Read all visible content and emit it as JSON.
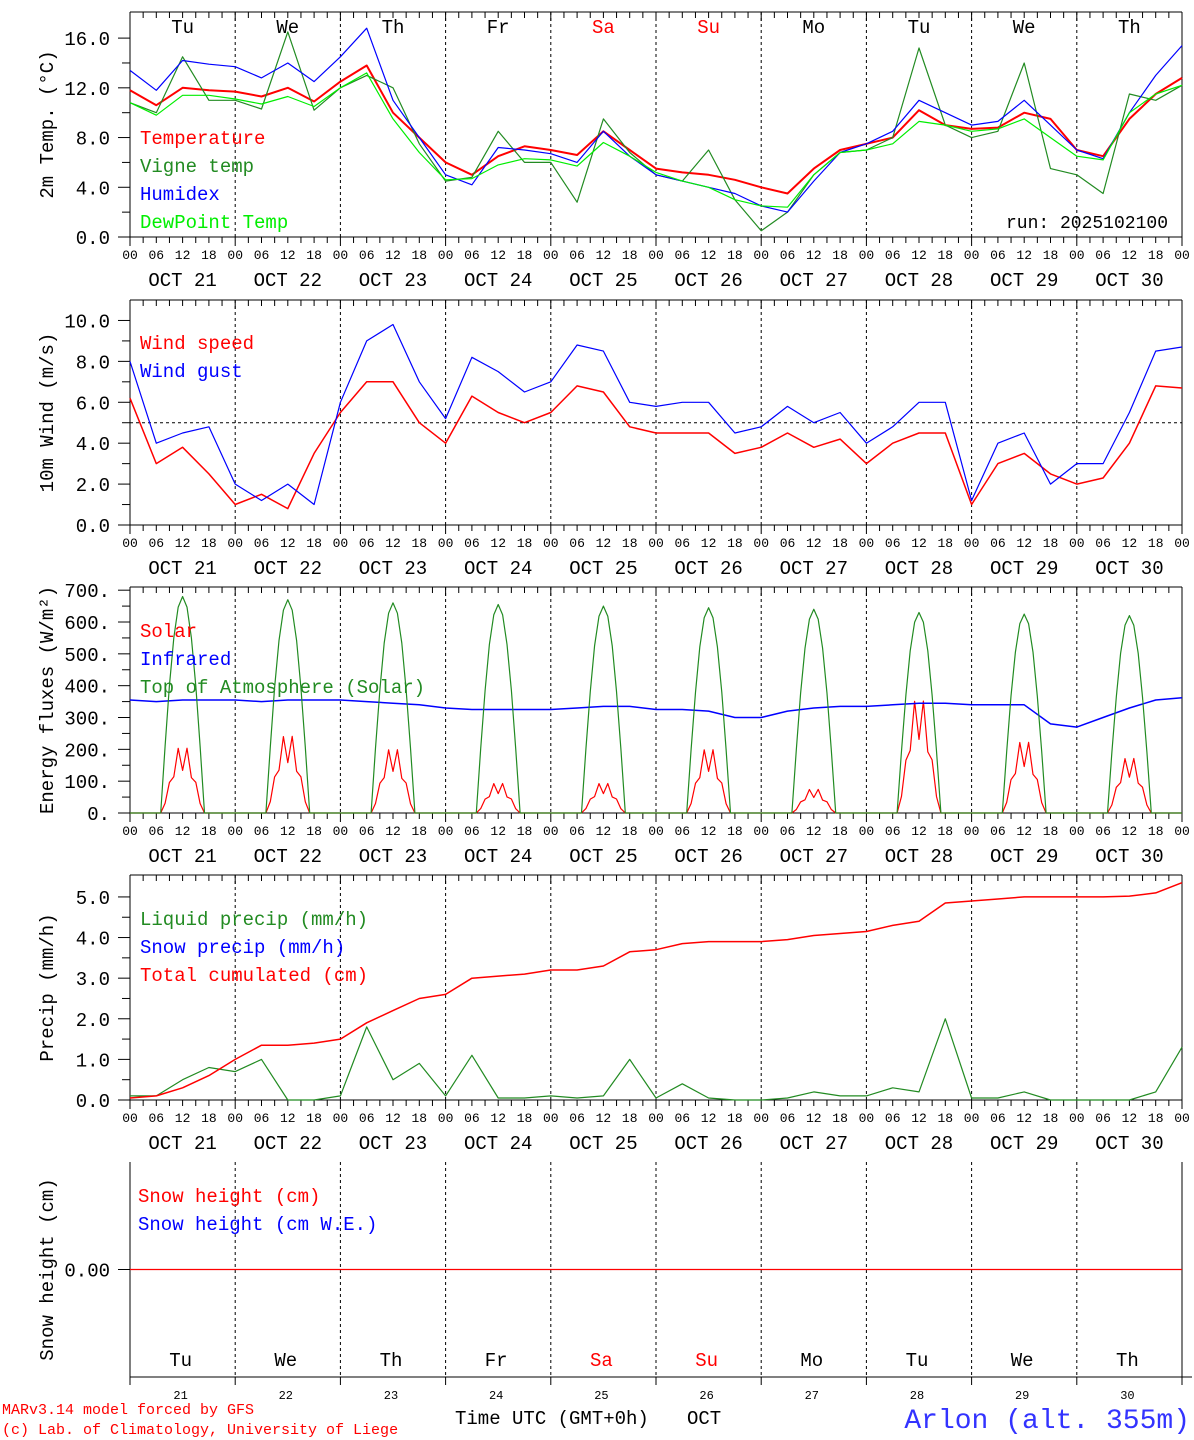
{
  "colors": {
    "red": "#ff0000",
    "green": "#228b22",
    "blue": "#0000ff",
    "lime": "#00ee00",
    "black": "#000000"
  },
  "days": [
    "Tu",
    "We",
    "Th",
    "Fr",
    "Sa",
    "Su",
    "Mo",
    "Tu",
    "We",
    "Th"
  ],
  "weekend": [
    false,
    false,
    false,
    false,
    true,
    true,
    false,
    false,
    false,
    false
  ],
  "dates": [
    "OCT 21",
    "OCT 22",
    "OCT 23",
    "OCT 24",
    "OCT 25",
    "OCT 26",
    "OCT 27",
    "OCT 28",
    "OCT 29",
    "OCT 30"
  ],
  "day_numbers": [
    "21",
    "22",
    "23",
    "24",
    "25",
    "26",
    "27",
    "28",
    "29",
    "30"
  ],
  "hour_labels": [
    "00",
    "06",
    "12",
    "18"
  ],
  "run_label": "run: 2025102100",
  "footer": {
    "model": "MARv3.14 model forced by GFS",
    "credit": "(c) Lab. of Climatology, University of Liege",
    "xlabel": "Time UTC (GMT+0h)",
    "month": "OCT",
    "station": "Arlon (alt. 355m)"
  },
  "chart_data": [
    {
      "type": "line",
      "ylabel": "2m Temp. (°C)",
      "ylim": [
        0,
        18.1
      ],
      "yticks": [
        "0.0",
        "4.0",
        "8.0",
        "12.0",
        "16.0"
      ],
      "ytick_values": [
        0,
        4,
        8,
        12,
        16
      ],
      "x_step_hours": 6,
      "series": [
        {
          "name": "Temperature",
          "color": "#ff0000",
          "width": 2,
          "values": [
            11.8,
            10.6,
            12.0,
            11.8,
            11.7,
            11.3,
            12.0,
            10.9,
            12.5,
            13.8,
            10.0,
            8.0,
            6.0,
            5.0,
            6.5,
            7.3,
            7.0,
            6.6,
            8.5,
            7.0,
            5.5,
            5.2,
            5.0,
            4.6,
            4.0,
            3.5,
            5.5,
            7.0,
            7.5,
            8.0,
            10.2,
            9.0,
            8.7,
            8.8,
            10.0,
            9.5,
            7.0,
            6.5,
            9.5,
            11.5,
            12.8
          ]
        },
        {
          "name": "Vigne temp",
          "color": "#228b22",
          "width": 1.2,
          "values": [
            10.8,
            10.0,
            14.5,
            11.0,
            11.0,
            10.3,
            16.5,
            10.2,
            12.0,
            13.0,
            12.0,
            7.5,
            4.5,
            4.8,
            8.5,
            6.0,
            6.0,
            2.8,
            9.5,
            6.8,
            5.0,
            4.5,
            7.0,
            3.0,
            0.5,
            2.0,
            5.0,
            6.8,
            7.0,
            8.0,
            15.2,
            9.0,
            8.0,
            8.5,
            14.0,
            5.5,
            5.0,
            3.5,
            11.5,
            11.0,
            12.2
          ]
        },
        {
          "name": "Humidex",
          "color": "#0000ff",
          "width": 1.2,
          "values": [
            13.4,
            11.8,
            14.2,
            13.9,
            13.7,
            12.8,
            14.0,
            12.5,
            14.5,
            16.8,
            11.0,
            8.0,
            5.0,
            4.2,
            7.2,
            7.0,
            6.7,
            6.0,
            8.5,
            6.5,
            5.0,
            4.5,
            4.0,
            3.5,
            2.5,
            2.0,
            4.5,
            6.8,
            7.5,
            8.5,
            11.0,
            10.0,
            9.0,
            9.3,
            11.0,
            9.0,
            7.0,
            6.3,
            10.0,
            13.0,
            15.4
          ]
        },
        {
          "name": "DewPoint Temp",
          "color": "#00ee00",
          "width": 1.2,
          "values": [
            10.8,
            9.8,
            11.4,
            11.4,
            11.1,
            10.7,
            11.3,
            10.5,
            12.0,
            13.2,
            9.5,
            6.8,
            4.6,
            4.7,
            5.8,
            6.3,
            6.2,
            5.7,
            7.6,
            6.5,
            5.2,
            4.5,
            4.0,
            3.0,
            2.5,
            2.4,
            5.0,
            6.8,
            7.0,
            7.5,
            9.3,
            9.0,
            8.5,
            8.7,
            9.5,
            8.0,
            6.5,
            6.2,
            10.0,
            11.5,
            12.2
          ]
        }
      ]
    },
    {
      "type": "line",
      "ylabel": "10m Wind (m/s)",
      "ylim": [
        0,
        11.0
      ],
      "yticks": [
        "0.0",
        "2.0",
        "4.0",
        "6.0",
        "8.0",
        "10.0"
      ],
      "ytick_values": [
        0,
        2,
        4,
        6,
        8,
        10
      ],
      "reference_line": 5,
      "x_step_hours": 6,
      "series": [
        {
          "name": "Wind speed",
          "color": "#ff0000",
          "width": 1.5,
          "values": [
            6.2,
            3.0,
            3.8,
            2.5,
            1.0,
            1.5,
            0.8,
            3.5,
            5.5,
            7.0,
            7.0,
            5.0,
            4.0,
            6.3,
            5.5,
            5.0,
            5.5,
            6.8,
            6.5,
            4.8,
            4.5,
            4.5,
            4.5,
            3.5,
            3.8,
            4.5,
            3.8,
            4.2,
            3.0,
            4.0,
            4.5,
            4.5,
            1.0,
            3.0,
            3.5,
            2.5,
            2.0,
            2.3,
            4.0,
            6.8,
            6.7
          ]
        },
        {
          "name": "Wind gust",
          "color": "#0000ff",
          "width": 1.2,
          "values": [
            8.0,
            4.0,
            4.5,
            4.8,
            2.0,
            1.2,
            2.0,
            1.0,
            6.0,
            9.0,
            9.8,
            7.0,
            5.2,
            8.2,
            7.5,
            6.5,
            7.0,
            8.8,
            8.5,
            6.0,
            5.8,
            6.0,
            6.0,
            4.5,
            4.8,
            5.8,
            5.0,
            5.5,
            4.0,
            4.8,
            6.0,
            6.0,
            1.2,
            4.0,
            4.5,
            2.0,
            3.0,
            3.0,
            5.5,
            8.5,
            8.7
          ]
        }
      ]
    },
    {
      "type": "line",
      "ylabel": "Energy fluxes (W/m²)",
      "ylim": [
        0,
        710
      ],
      "yticks": [
        "0.",
        "100.",
        "200.",
        "300.",
        "400.",
        "500.",
        "600.",
        "700."
      ],
      "ytick_values": [
        0,
        100,
        200,
        300,
        400,
        500,
        600,
        700
      ],
      "series": [
        {
          "name": "Solar",
          "color": "#ff0000",
          "width": 1.2,
          "daily_peaks": [
            220,
            260,
            215,
            100,
            100,
            215,
            80,
            380,
            240,
            185
          ]
        },
        {
          "name": "Infrared",
          "color": "#0000ff",
          "width": 1.5,
          "x_step_hours": 6,
          "values": [
            355,
            350,
            355,
            355,
            355,
            350,
            355,
            355,
            355,
            350,
            345,
            340,
            330,
            325,
            325,
            325,
            325,
            330,
            335,
            335,
            325,
            325,
            320,
            300,
            300,
            320,
            330,
            335,
            335,
            340,
            345,
            345,
            340,
            340,
            340,
            280,
            270,
            300,
            330,
            355,
            362
          ]
        },
        {
          "name": "Top of Atmosphere (Solar)",
          "color": "#228b22",
          "width": 1.2,
          "daily_peaks": [
            680,
            670,
            660,
            655,
            650,
            645,
            640,
            630,
            625,
            620
          ]
        }
      ]
    },
    {
      "type": "line",
      "ylabel": "Precip (mm/h)",
      "ylim": [
        0,
        5.54
      ],
      "yticks": [
        "0.0",
        "1.0",
        "2.0",
        "3.0",
        "4.0",
        "5.0"
      ],
      "ytick_values": [
        0,
        1,
        2,
        3,
        4,
        5
      ],
      "x_step_hours": 6,
      "series": [
        {
          "name": "Liquid precip (mm/h)",
          "color": "#228b22",
          "width": 1.2,
          "values": [
            0.1,
            0.1,
            0.5,
            0.8,
            0.7,
            1.0,
            0.0,
            0.0,
            0.1,
            1.8,
            0.5,
            0.9,
            0.1,
            1.1,
            0.05,
            0.05,
            0.1,
            0.05,
            0.1,
            1.0,
            0.05,
            0.4,
            0.05,
            0.0,
            0.0,
            0.05,
            0.2,
            0.1,
            0.1,
            0.3,
            0.2,
            2.0,
            0.05,
            0.05,
            0.2,
            0.0,
            0.0,
            0.0,
            0.0,
            0.2,
            1.3
          ]
        },
        {
          "name": "Snow precip (mm/h)",
          "color": "#0000ff",
          "width": 1.2,
          "values": []
        },
        {
          "name": "Total cumulated (cm)",
          "color": "#ff0000",
          "width": 1.5,
          "values": [
            0.05,
            0.1,
            0.3,
            0.6,
            1.0,
            1.35,
            1.35,
            1.4,
            1.5,
            1.9,
            2.2,
            2.5,
            2.6,
            3.0,
            3.05,
            3.1,
            3.2,
            3.2,
            3.3,
            3.65,
            3.7,
            3.85,
            3.9,
            3.9,
            3.9,
            3.95,
            4.05,
            4.1,
            4.15,
            4.3,
            4.4,
            4.85,
            4.9,
            4.95,
            5.0,
            5.0,
            5.0,
            5.0,
            5.02,
            5.1,
            5.35
          ]
        }
      ]
    },
    {
      "type": "line",
      "ylabel": "Snow height (cm)",
      "ylim": [
        -1,
        1
      ],
      "yticks": [
        "0.00"
      ],
      "ytick_values": [
        0
      ],
      "x_step_hours": 240,
      "series": [
        {
          "name": "Snow height (cm)",
          "color": "#ff0000",
          "width": 1.2,
          "values": [
            0,
            0
          ]
        },
        {
          "name": "Snow height (cm W.E.)",
          "color": "#0000ff",
          "width": 1.2,
          "values": []
        }
      ]
    }
  ]
}
